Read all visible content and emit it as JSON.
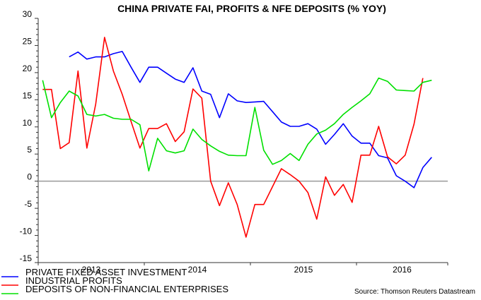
{
  "chart_data": {
    "type": "line",
    "title": "CHINA PRIVATE FAI,  PROFITS & NFE DEPOSITS (% YOY)",
    "xlabel": "",
    "ylabel": "",
    "ylim": [
      -15,
      30
    ],
    "yticks": [
      -15,
      -10,
      -5,
      0,
      5,
      10,
      15,
      20,
      25,
      30
    ],
    "xlim_months": [
      "2013-01",
      "2016-10"
    ],
    "xtick_labels": [
      "2013",
      "2014",
      "2015",
      "2016"
    ],
    "grid": false,
    "zero_line": true,
    "legend_position": "bottom-left",
    "source": "Source: Thomson Reuters Datastream",
    "x_start": "2013-01",
    "series": [
      {
        "name": "PRIVATE FIXED ASSET INVESTMENT",
        "color": "#0000ff",
        "start_index": 3,
        "values": [
          22.9,
          23.8,
          22.5,
          22.9,
          22.9,
          23.5,
          23.9,
          21.0,
          18.2,
          21.0,
          21.0,
          19.9,
          18.8,
          18.2,
          20.9,
          16.6,
          16.0,
          11.7,
          16.1,
          14.8,
          14.5,
          14.6,
          14.7,
          12.8,
          10.9,
          10.1,
          10.1,
          10.6,
          9.6,
          6.8,
          8.6,
          10.6,
          8.3,
          7.0,
          7.0,
          4.7,
          4.3,
          1.0,
          0.0,
          -1.2,
          2.5,
          4.4
        ]
      },
      {
        "name": "INDUSTRIAL PROFITS",
        "color": "#ff0000",
        "start_index": 0,
        "values": [
          16.9,
          16.9,
          6.0,
          7.1,
          20.3,
          6.1,
          14.2,
          26.5,
          20.3,
          16.0,
          11.0,
          6.1,
          9.7,
          9.7,
          10.6,
          7.3,
          9.1,
          17.0,
          15.3,
          0.0,
          -4.5,
          -0.3,
          -4.3,
          -10.3,
          -4.3,
          -4.3,
          -1.0,
          2.3,
          1.2,
          0.0,
          -2.1,
          -7.0,
          0.8,
          -2.6,
          -0.6,
          -3.9,
          4.8,
          4.8,
          10.1,
          4.5,
          3.2,
          4.8,
          10.5,
          19.0
        ]
      },
      {
        "name": "DEPOSITS OF NON-FINANCIAL ENTERPRISES",
        "color": "#00e000",
        "start_index": 0,
        "values": [
          18.6,
          11.7,
          14.5,
          16.6,
          15.7,
          12.3,
          12.0,
          12.3,
          11.6,
          11.4,
          11.4,
          10.4,
          1.9,
          7.9,
          5.6,
          5.2,
          5.6,
          9.6,
          7.7,
          6.5,
          5.5,
          4.8,
          4.7,
          4.7,
          13.6,
          5.7,
          3.1,
          3.8,
          5.1,
          3.8,
          6.8,
          8.7,
          9.4,
          10.6,
          12.3,
          13.6,
          14.8,
          16.1,
          19.0,
          18.4,
          16.8,
          16.7,
          16.6,
          18.2,
          18.6
        ]
      }
    ]
  }
}
